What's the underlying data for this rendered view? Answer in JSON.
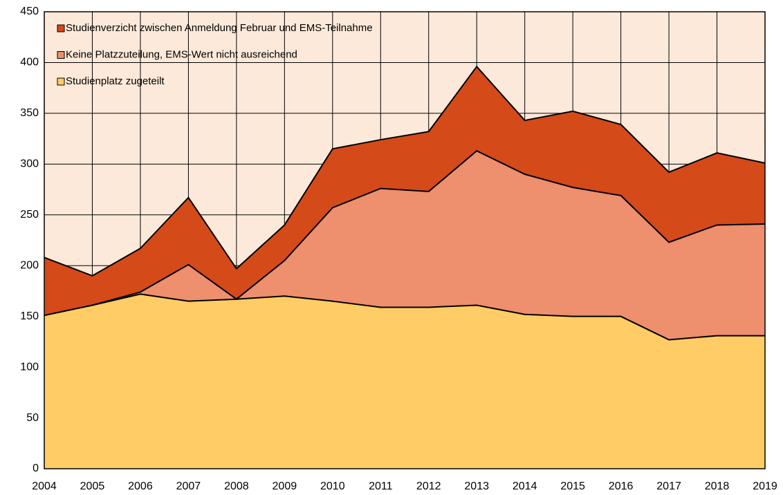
{
  "chart_data": {
    "type": "stacked-area",
    "x": [
      2004,
      2005,
      2006,
      2007,
      2008,
      2009,
      2010,
      2011,
      2012,
      2013,
      2014,
      2015,
      2016,
      2017,
      2018,
      2019
    ],
    "xlim": [
      2004,
      2019
    ],
    "ylim": [
      0,
      450
    ],
    "yticks": [
      0,
      50,
      100,
      150,
      200,
      250,
      300,
      350,
      400,
      450
    ],
    "grid": true,
    "legend": "top-left",
    "background": "#fde9d9",
    "series": [
      {
        "name": "Studienplatz zugeteilt",
        "color": "#ffcc66",
        "values": [
          151,
          161,
          172,
          165,
          167,
          170,
          165,
          159,
          159,
          161,
          152,
          150,
          150,
          127,
          131,
          131
        ]
      },
      {
        "name": "Keine Platzzuteilung, EMS-Wert nicht ausreichend",
        "color": "#ee8f6d",
        "values": [
          0,
          0,
          2,
          36,
          0,
          35,
          92,
          117,
          114,
          152,
          138,
          127,
          119,
          96,
          109,
          110
        ]
      },
      {
        "name": "Studienverzicht zwischen Anmeldung Februar und EMS-Teilnahme",
        "color": "#d44a18",
        "values": [
          57,
          29,
          43,
          66,
          30,
          35,
          58,
          48,
          59,
          83,
          53,
          75,
          70,
          69,
          71,
          60
        ]
      }
    ]
  }
}
